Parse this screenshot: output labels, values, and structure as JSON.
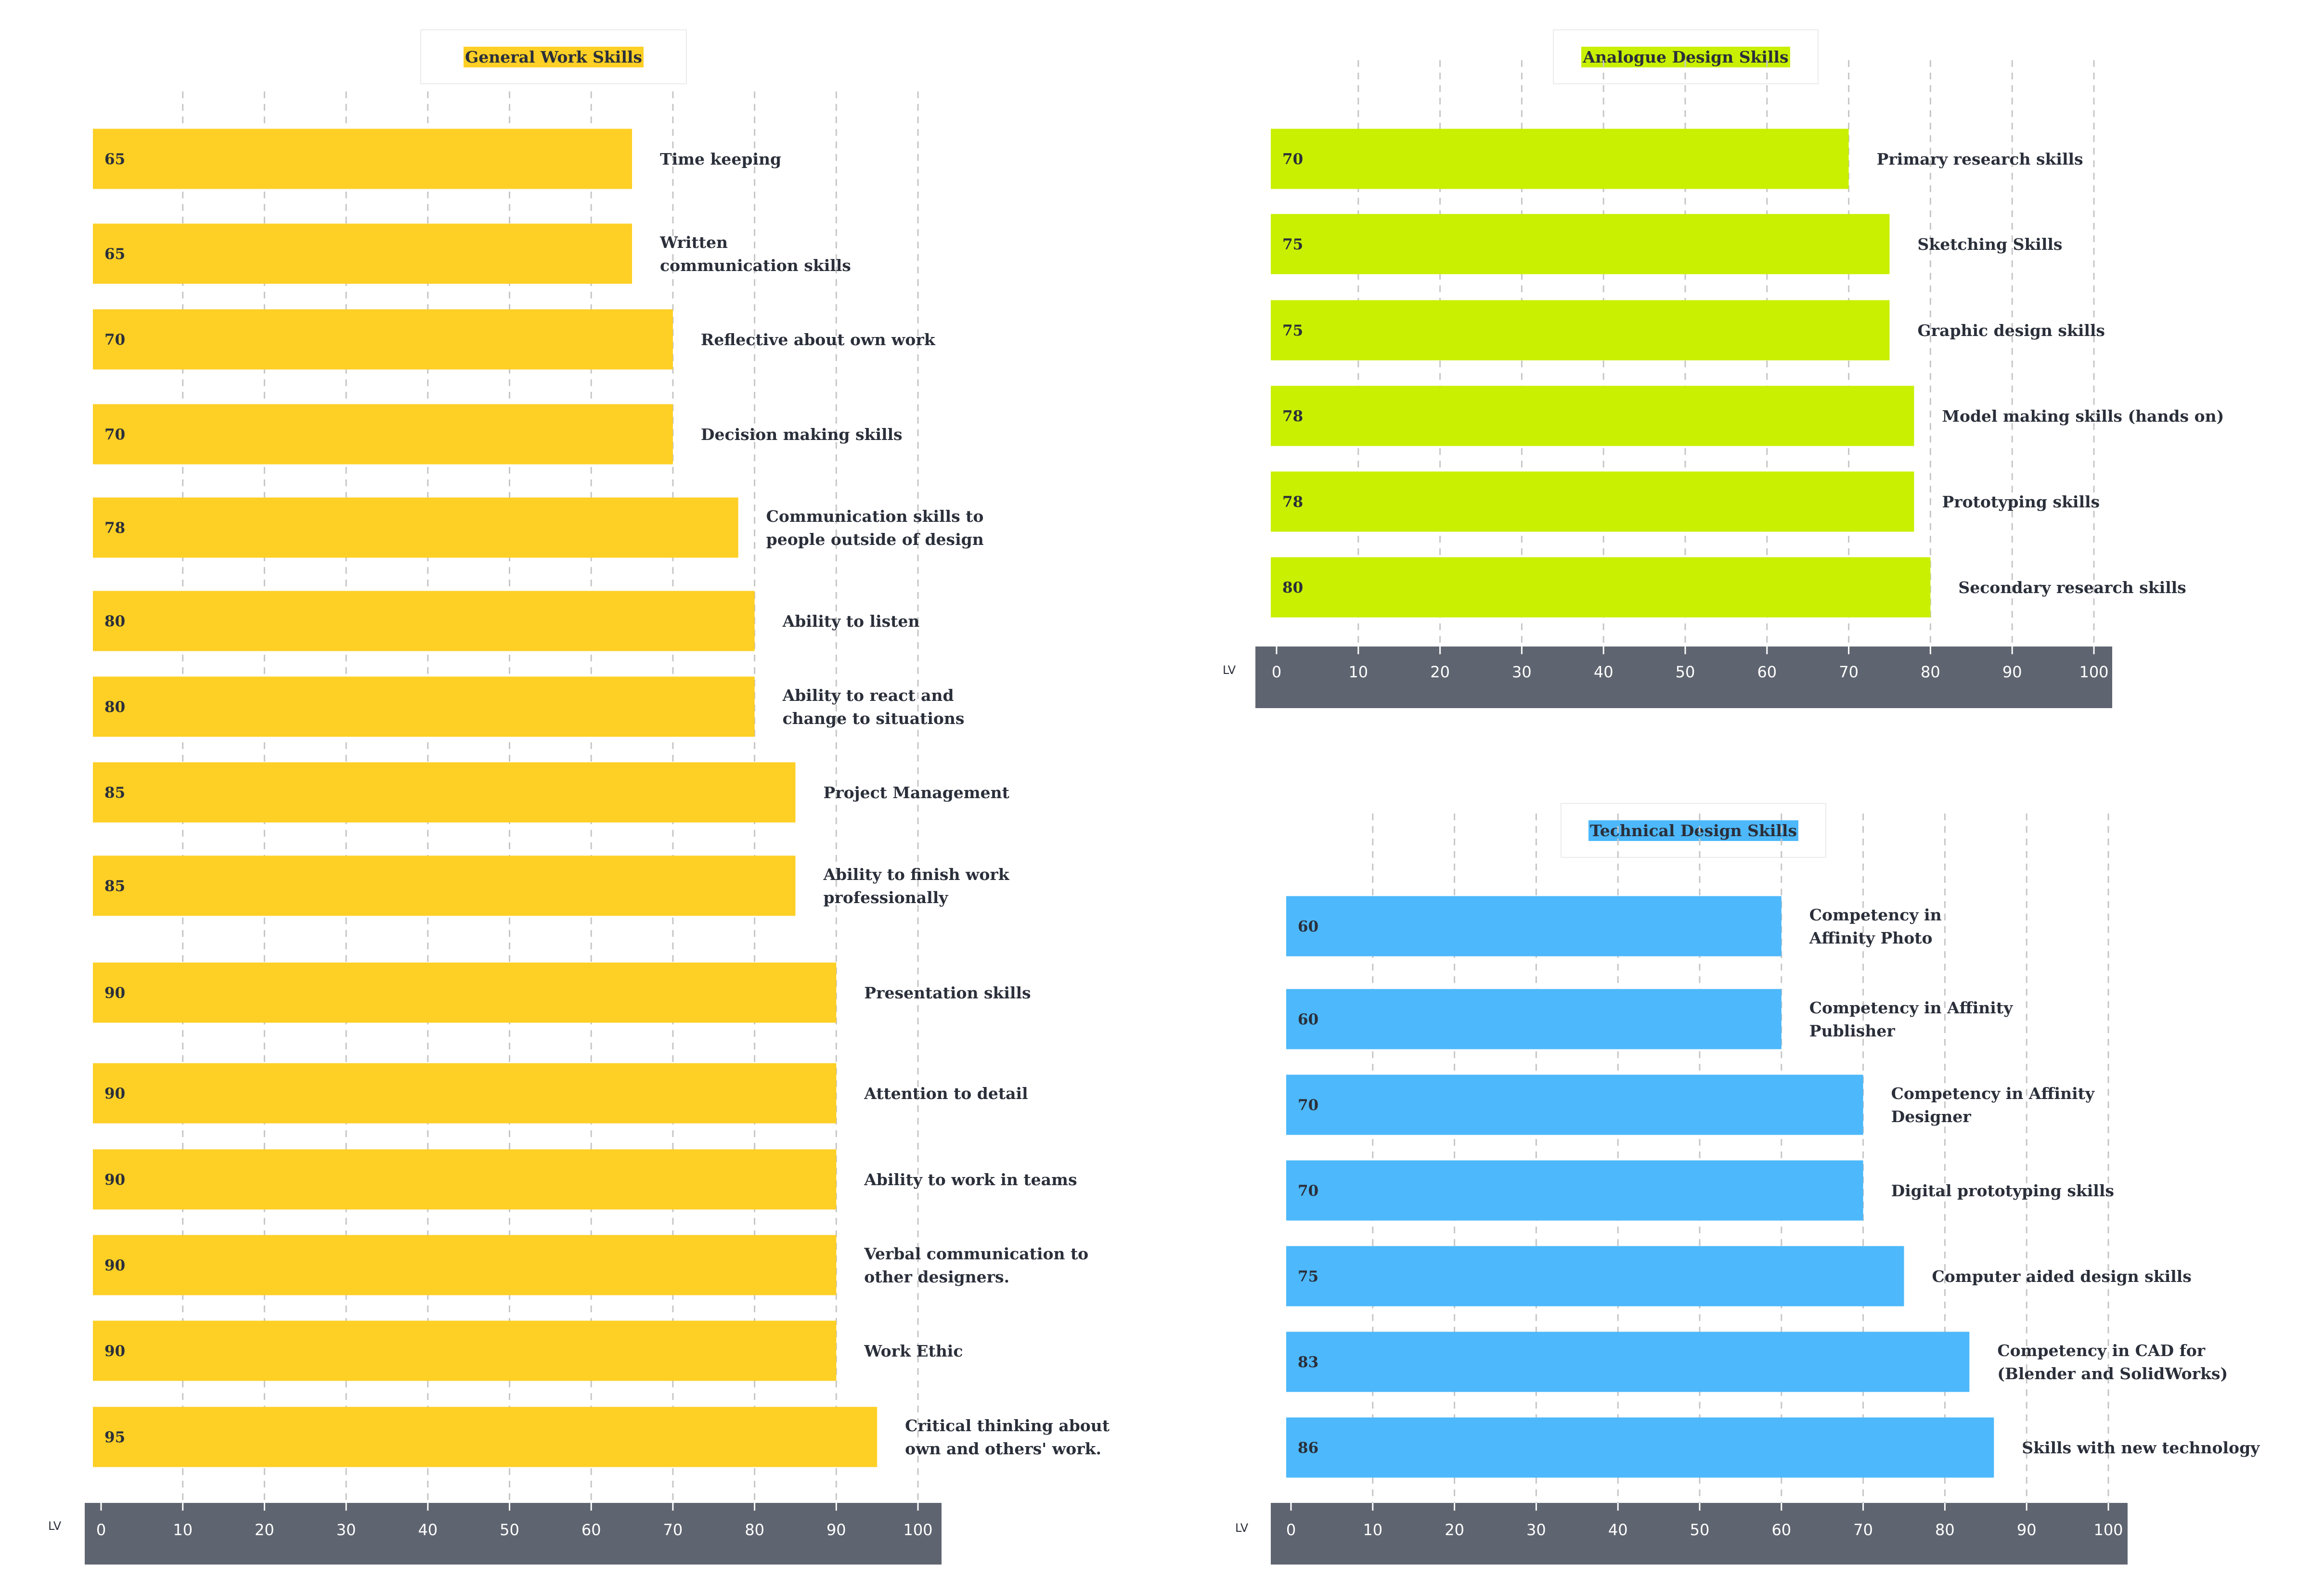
{
  "chart_data": [
    {
      "type": "bar",
      "orientation": "horizontal",
      "title": "General Work Skills",
      "title_highlight": "#fecf25",
      "bar_color": "#fecf25",
      "axis_label": "LV",
      "xlim": [
        0,
        100
      ],
      "ticks": [
        0,
        10,
        20,
        30,
        40,
        50,
        60,
        70,
        80,
        90,
        100
      ],
      "grid": "vertical dashed",
      "categories": [
        [
          "Time keeping"
        ],
        [
          "Written",
          "communication skills"
        ],
        [
          "Reflective about own work"
        ],
        [
          "Decision making skills"
        ],
        [
          "Communication skills to",
          "people outside of design"
        ],
        [
          "Ability to listen"
        ],
        [
          "Ability to react and",
          "change to situations"
        ],
        [
          "Project Management"
        ],
        [
          "Ability to finish work",
          "professionally"
        ],
        [
          "Presentation skills"
        ],
        [
          "Attention to detail"
        ],
        [
          "Ability to work in teams"
        ],
        [
          "Verbal communication to",
          "other designers."
        ],
        [
          "Work Ethic"
        ],
        [
          "Critical thinking about",
          "own and others' work."
        ]
      ],
      "values": [
        65,
        65,
        70,
        70,
        78,
        80,
        80,
        85,
        85,
        90,
        90,
        90,
        90,
        90,
        95
      ]
    },
    {
      "type": "bar",
      "orientation": "horizontal",
      "title": "Analogue Design Skills",
      "title_highlight": "#c8f000",
      "bar_color": "#c8f000",
      "axis_label": "LV",
      "xlim": [
        0,
        100
      ],
      "ticks": [
        0,
        10,
        20,
        30,
        40,
        50,
        60,
        70,
        80,
        90,
        100
      ],
      "grid": "vertical dashed",
      "categories": [
        [
          "Primary research skills"
        ],
        [
          "Sketching Skills"
        ],
        [
          "Graphic design skills"
        ],
        [
          "Model making skills (hands on)"
        ],
        [
          "Prototyping skills"
        ],
        [
          "Secondary research skills"
        ]
      ],
      "values": [
        70,
        75,
        75,
        78,
        78,
        80
      ]
    },
    {
      "type": "bar",
      "orientation": "horizontal",
      "title": "Technical Design Skills",
      "title_highlight": "#4db8fb",
      "bar_color": "#4db8fb",
      "axis_label": "LV",
      "xlim": [
        0,
        100
      ],
      "ticks": [
        0,
        10,
        20,
        30,
        40,
        50,
        60,
        70,
        80,
        90,
        100
      ],
      "grid": "vertical dashed",
      "categories": [
        [
          "Competency in",
          "Affinity Photo"
        ],
        [
          "Competency in Affinity",
          "Publisher"
        ],
        [
          "Competency in Affinity",
          "Designer"
        ],
        [
          "Digital prototyping skills"
        ],
        [
          "Computer aided design skills"
        ],
        [
          "Competency in CAD for",
          "(Blender and SolidWorks)"
        ],
        [
          "Skills with new technology"
        ]
      ],
      "values": [
        60,
        60,
        70,
        70,
        75,
        83,
        86
      ]
    }
  ],
  "axis_band_color": "#5f6570"
}
